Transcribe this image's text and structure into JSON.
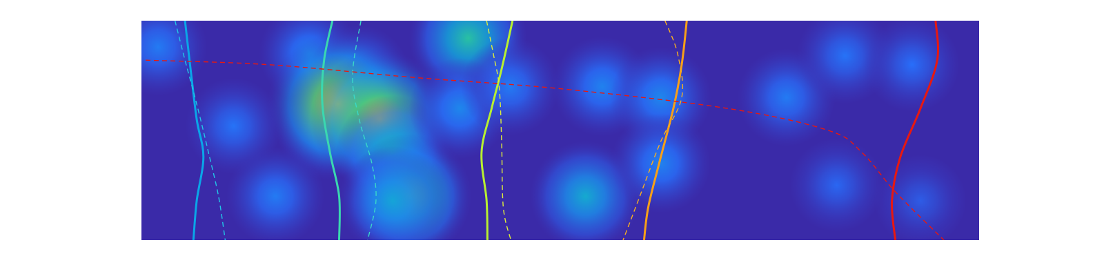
{
  "chart_data": {
    "type": "heatmap",
    "title": "",
    "xlabel": "",
    "ylabel": "",
    "axes_visible": false,
    "grid": false,
    "legend": "none",
    "colormap": "parula",
    "colors": {
      "background": "#3a2aa8",
      "low": "#3e26a8",
      "mid": "#18b9c6",
      "high": "#f9d61f"
    },
    "hotspots": [
      {
        "x": 0.02,
        "y": 0.88,
        "intensity": 0.25
      },
      {
        "x": 0.11,
        "y": 0.52,
        "intensity": 0.22
      },
      {
        "x": 0.2,
        "y": 0.85,
        "intensity": 0.28
      },
      {
        "x": 0.22,
        "y": 0.5,
        "intensity": 0.25
      },
      {
        "x": 0.16,
        "y": 0.2,
        "intensity": 0.25
      },
      {
        "x": 0.26,
        "y": 0.75,
        "intensity": 0.3
      },
      {
        "x": 0.235,
        "y": 0.62,
        "intensity": 0.95
      },
      {
        "x": 0.285,
        "y": 0.55,
        "intensity": 0.9
      },
      {
        "x": 0.3,
        "y": 0.4,
        "intensity": 0.5
      },
      {
        "x": 0.32,
        "y": 0.2,
        "intensity": 0.68
      },
      {
        "x": 0.3,
        "y": 0.18,
        "intensity": 0.42
      },
      {
        "x": 0.39,
        "y": 0.92,
        "intensity": 0.58
      },
      {
        "x": 0.38,
        "y": 0.6,
        "intensity": 0.3
      },
      {
        "x": 0.44,
        "y": 0.7,
        "intensity": 0.25
      },
      {
        "x": 0.53,
        "y": 0.2,
        "intensity": 0.45
      },
      {
        "x": 0.55,
        "y": 0.7,
        "intensity": 0.28
      },
      {
        "x": 0.62,
        "y": 0.65,
        "intensity": 0.3
      },
      {
        "x": 0.62,
        "y": 0.35,
        "intensity": 0.28
      },
      {
        "x": 0.77,
        "y": 0.65,
        "intensity": 0.25
      },
      {
        "x": 0.83,
        "y": 0.25,
        "intensity": 0.18
      },
      {
        "x": 0.84,
        "y": 0.84,
        "intensity": 0.22
      },
      {
        "x": 0.93,
        "y": 0.18,
        "intensity": 0.15
      },
      {
        "x": 0.92,
        "y": 0.8,
        "intensity": 0.2
      }
    ],
    "series": [
      {
        "style": "solid",
        "color": "#0aa6e8",
        "points": [
          [
            0.052,
            1.0
          ],
          [
            0.058,
            0.8
          ],
          [
            0.066,
            0.55
          ],
          [
            0.074,
            0.38
          ],
          [
            0.066,
            0.18
          ],
          [
            0.062,
            0.0
          ]
        ]
      },
      {
        "style": "dashed",
        "color": "#20c8e8",
        "points": [
          [
            0.04,
            1.0
          ],
          [
            0.052,
            0.82
          ],
          [
            0.066,
            0.62
          ],
          [
            0.08,
            0.4
          ],
          [
            0.092,
            0.2
          ],
          [
            0.1,
            0.0
          ]
        ]
      },
      {
        "style": "solid",
        "color": "#3ad8b0",
        "points": [
          [
            0.228,
            1.0
          ],
          [
            0.218,
            0.82
          ],
          [
            0.216,
            0.62
          ],
          [
            0.225,
            0.4
          ],
          [
            0.236,
            0.2
          ],
          [
            0.236,
            0.0
          ]
        ]
      },
      {
        "style": "dashed",
        "color": "#3ad8c8",
        "points": [
          [
            0.262,
            1.0
          ],
          [
            0.252,
            0.75
          ],
          [
            0.26,
            0.55
          ],
          [
            0.275,
            0.35
          ],
          [
            0.28,
            0.18
          ],
          [
            0.27,
            0.0
          ]
        ]
      },
      {
        "style": "solid",
        "color": "#b8f030",
        "points": [
          [
            0.443,
            1.0
          ],
          [
            0.43,
            0.78
          ],
          [
            0.418,
            0.6
          ],
          [
            0.406,
            0.4
          ],
          [
            0.412,
            0.18
          ],
          [
            0.413,
            0.0
          ]
        ]
      },
      {
        "style": "dashed",
        "color": "#e0f038",
        "points": [
          [
            0.412,
            1.0
          ],
          [
            0.42,
            0.85
          ],
          [
            0.427,
            0.7
          ],
          [
            0.43,
            0.45
          ],
          [
            0.432,
            0.15
          ],
          [
            0.441,
            0.0
          ]
        ]
      },
      {
        "style": "solid",
        "color": "#f8a018",
        "points": [
          [
            0.651,
            1.0
          ],
          [
            0.645,
            0.8
          ],
          [
            0.635,
            0.6
          ],
          [
            0.618,
            0.35
          ],
          [
            0.605,
            0.15
          ],
          [
            0.6,
            0.0
          ]
        ]
      },
      {
        "style": "dashed",
        "color": "#f8b020",
        "points": [
          [
            0.625,
            1.0
          ],
          [
            0.64,
            0.85
          ],
          [
            0.645,
            0.65
          ],
          [
            0.62,
            0.45
          ],
          [
            0.595,
            0.2
          ],
          [
            0.575,
            0.0
          ]
        ]
      },
      {
        "style": "solid",
        "color": "#e81810",
        "points": [
          [
            0.948,
            1.0
          ],
          [
            0.95,
            0.82
          ],
          [
            0.93,
            0.6
          ],
          [
            0.906,
            0.38
          ],
          [
            0.896,
            0.18
          ],
          [
            0.9,
            0.0
          ]
        ]
      },
      {
        "style": "dashed",
        "color": "#e81810",
        "points": [
          [
            0.005,
            0.82
          ],
          [
            0.15,
            0.8
          ],
          [
            0.33,
            0.74
          ],
          [
            0.5,
            0.69
          ],
          [
            0.7,
            0.6
          ],
          [
            0.82,
            0.5
          ],
          [
            0.86,
            0.4
          ],
          [
            0.9,
            0.22
          ],
          [
            0.958,
            0.0
          ]
        ]
      }
    ]
  }
}
